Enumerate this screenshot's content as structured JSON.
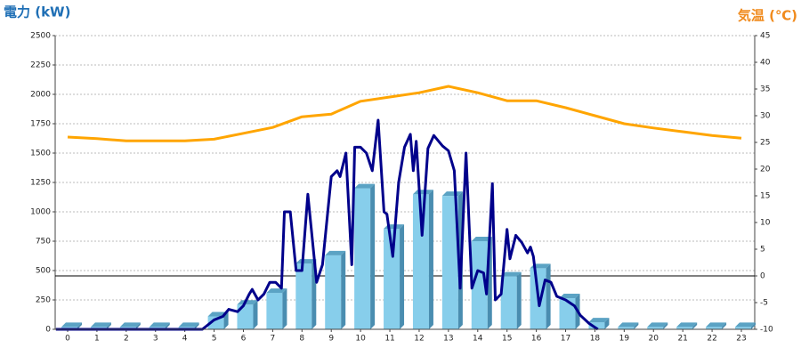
{
  "chart_data": {
    "type": "bar",
    "y_label": "電力 (kW)",
    "y2_label": "気温 (℃)",
    "categories": [
      "0",
      "1",
      "2",
      "3",
      "4",
      "5",
      "6",
      "7",
      "8",
      "9",
      "10",
      "11",
      "12",
      "13",
      "14",
      "15",
      "16",
      "17",
      "18",
      "19",
      "20",
      "21",
      "22",
      "23"
    ],
    "ylim": [
      0,
      2500
    ],
    "yticks": [
      0,
      250,
      500,
      750,
      1000,
      1250,
      1500,
      1750,
      2000,
      2250,
      2500
    ],
    "y2lim": [
      -10,
      45
    ],
    "y2ticks": [
      -10,
      -5,
      0,
      5,
      10,
      15,
      20,
      25,
      30,
      35,
      40,
      45
    ],
    "grid": true,
    "series": [
      {
        "type": "bar",
        "color": "#87ceeb",
        "values": [
          20,
          20,
          20,
          20,
          20,
          110,
          210,
          310,
          560,
          630,
          1200,
          855,
          1150,
          1135,
          750,
          450,
          520,
          265,
          60,
          20,
          20,
          20,
          20,
          20
        ]
      },
      {
        "type": "line",
        "axis": "y2",
        "color": "#ffa500",
        "values": [
          26,
          25.7,
          25.3,
          25.3,
          25.3,
          25.6,
          26.7,
          27.8,
          29.8,
          30.3,
          32.7,
          33.5,
          34.3,
          35.5,
          34.3,
          32.8,
          32.8,
          31.5,
          30,
          28.5,
          27.7,
          27,
          26.3,
          25.8
        ]
      },
      {
        "type": "line",
        "color": "#00008b",
        "x": [
          -0.4,
          4.6,
          5.0,
          5.3,
          5.5,
          5.8,
          6.0,
          6.2,
          6.3,
          6.5,
          6.7,
          6.9,
          7.1,
          7.3,
          7.4,
          7.6,
          7.8,
          8.0,
          8.2,
          8.5,
          8.7,
          9.0,
          9.2,
          9.3,
          9.5,
          9.7,
          9.8,
          10.0,
          10.2,
          10.4,
          10.6,
          10.8,
          10.9,
          11.1,
          11.3,
          11.5,
          11.7,
          11.8,
          11.9,
          12.1,
          12.3,
          12.5,
          12.8,
          13.0,
          13.2,
          13.4,
          13.6,
          13.8,
          14.0,
          14.2,
          14.3,
          14.5,
          14.6,
          14.8,
          15.0,
          15.1,
          15.3,
          15.5,
          15.7,
          15.8,
          15.9,
          16.1,
          16.3,
          16.5,
          16.7,
          17.0,
          17.3,
          17.5,
          17.8,
          18.1
        ],
        "values": [
          0,
          0,
          80,
          110,
          170,
          150,
          200,
          300,
          340,
          250,
          300,
          400,
          400,
          350,
          1000,
          1000,
          500,
          500,
          1150,
          400,
          550,
          1300,
          1350,
          1300,
          1500,
          550,
          1550,
          1550,
          1500,
          1350,
          1780,
          1000,
          980,
          620,
          1250,
          1550,
          1660,
          1350,
          1600,
          800,
          1540,
          1650,
          1560,
          1520,
          1350,
          350,
          1500,
          350,
          500,
          480,
          300,
          1240,
          250,
          300,
          850,
          600,
          800,
          740,
          650,
          700,
          620,
          200,
          420,
          400,
          280,
          250,
          200,
          120,
          50,
          0
        ]
      }
    ]
  }
}
